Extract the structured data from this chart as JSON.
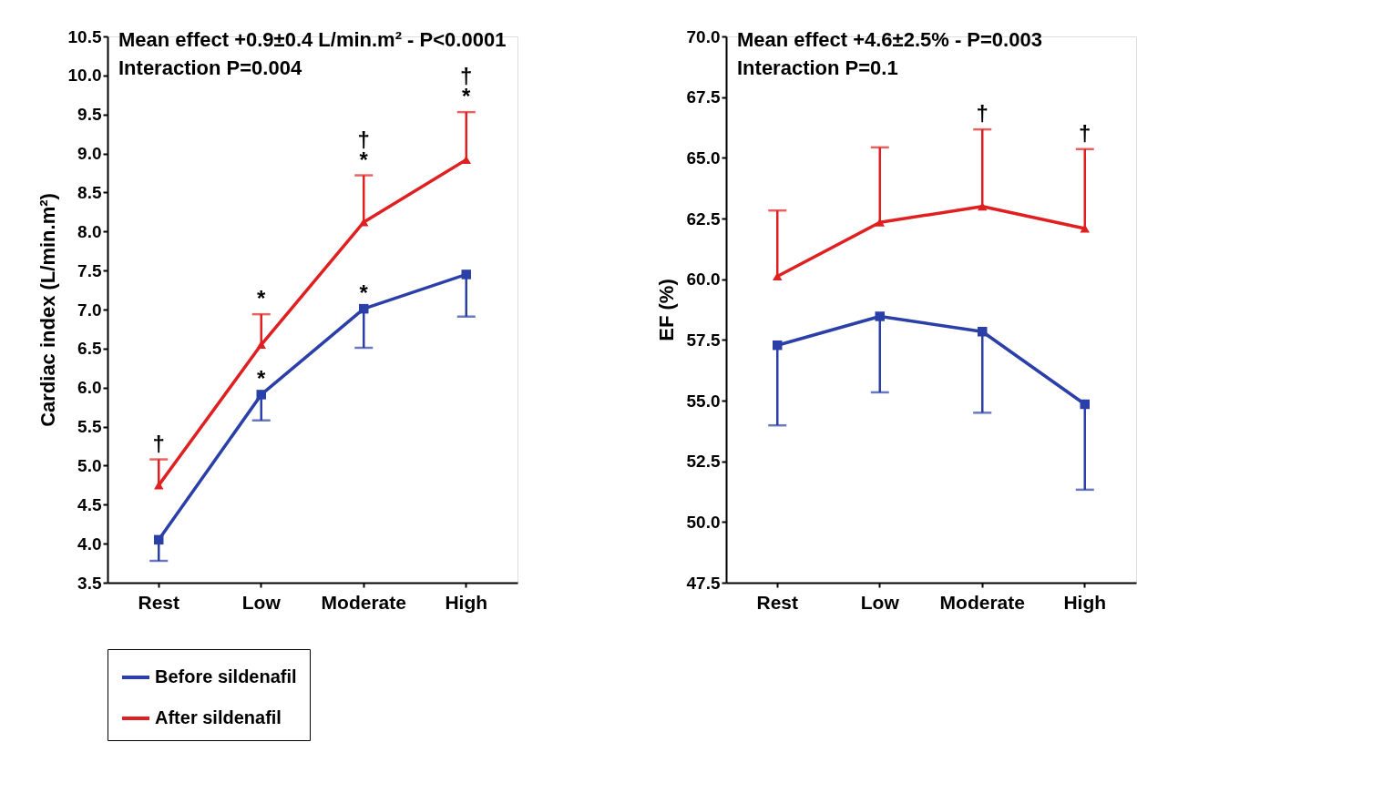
{
  "chart_data": [
    {
      "type": "line",
      "categories": [
        "Rest",
        "Low",
        "Moderate",
        "High"
      ],
      "ylabel": "Cardiac index (L/min.m²)",
      "ylim": [
        3.5,
        10.5
      ],
      "yticks": [
        3.5,
        {
          "value": 4,
          "label": "4.0"
        },
        4.5,
        {
          "value": 5,
          "label": "5.0"
        },
        5.5,
        {
          "value": 6,
          "label": "6.0"
        },
        6.5,
        {
          "value": 7,
          "label": "7.0"
        },
        7.5,
        {
          "value": 8,
          "label": "8.0"
        },
        8.5,
        {
          "value": 9,
          "label": "9.0"
        },
        9.5,
        {
          "value": 10,
          "label": "10.0"
        },
        10.5
      ],
      "grid": false,
      "legend": "bottom",
      "line_style": "solid",
      "series": [
        {
          "name": "Before sildenafil",
          "color": "#2b3fa8",
          "marker": "square",
          "values": [
            4.05,
            5.91,
            7.01,
            7.45
          ],
          "errors": [
            [
              3.78,
              4.05
            ],
            [
              5.58,
              5.91
            ],
            [
              6.51,
              7.01
            ],
            [
              6.91,
              7.45
            ]
          ]
        },
        {
          "name": "After sildenafil",
          "color": "#e02020",
          "marker": "triangle",
          "values": [
            4.75,
            6.55,
            8.12,
            8.92
          ],
          "errors": [
            [
              4.75,
              5.08
            ],
            [
              6.55,
              6.94
            ],
            [
              8.12,
              8.72
            ],
            [
              8.92,
              9.53
            ]
          ]
        }
      ],
      "annotations": [
        "Mean effect +0.9±0.4 L/min.m² - P<0.0001",
        "Interaction P=0.004",
        {
          "text": "†",
          "x": "Rest",
          "y": 5.08
        },
        {
          "text": "*",
          "x": "Low",
          "y": 6.94
        },
        {
          "text": "*",
          "x": "Low",
          "y": 5.91
        },
        {
          "text": "*",
          "x": "Moderate",
          "y": 8.72
        },
        {
          "text": "†",
          "x": "Moderate",
          "y": 8.72
        },
        {
          "text": "*",
          "x": "Moderate",
          "y": 7.01
        },
        {
          "text": "*",
          "x": "High",
          "y": 9.53
        },
        {
          "text": "†",
          "x": "High",
          "y": 9.53
        }
      ]
    },
    {
      "type": "line",
      "categories": [
        "Rest",
        "Low",
        "Moderate",
        "High"
      ],
      "ylabel": "EF (%)",
      "ylim": [
        47.5,
        70.0
      ],
      "yticks": [
        47.5,
        {
          "value": 50,
          "label": "50.0"
        },
        52.5,
        {
          "value": 55,
          "label": "55.0"
        },
        57.5,
        {
          "value": 60,
          "label": "60.0"
        },
        62.5,
        {
          "value": 65,
          "label": "65.0"
        },
        67.5,
        {
          "value": 70,
          "label": "70.0"
        }
      ],
      "grid": false,
      "legend": "bottom",
      "line_style": "solid",
      "series": [
        {
          "name": "Before sildenafil",
          "color": "#2b3fa8",
          "marker": "square",
          "values": [
            57.28,
            58.47,
            57.84,
            54.85
          ],
          "errors": [
            [
              53.98,
              57.28
            ],
            [
              55.34,
              58.47
            ],
            [
              54.5,
              57.84
            ],
            [
              51.33,
              54.85
            ]
          ]
        },
        {
          "name": "After sildenafil",
          "color": "#e02020",
          "marker": "triangle",
          "values": [
            60.12,
            62.34,
            63.0,
            62.09
          ],
          "errors": [
            [
              60.12,
              62.83
            ],
            [
              62.34,
              65.43
            ],
            [
              63.0,
              66.17
            ],
            [
              62.09,
              65.36
            ]
          ]
        }
      ],
      "annotations": [
        "Mean effect +4.6±2.5% - P=0.003",
        "Interaction P=0.1",
        {
          "text": "†",
          "x": "Moderate",
          "y": 66.17
        },
        {
          "text": "†",
          "x": "High",
          "y": 65.36
        }
      ]
    }
  ]
}
